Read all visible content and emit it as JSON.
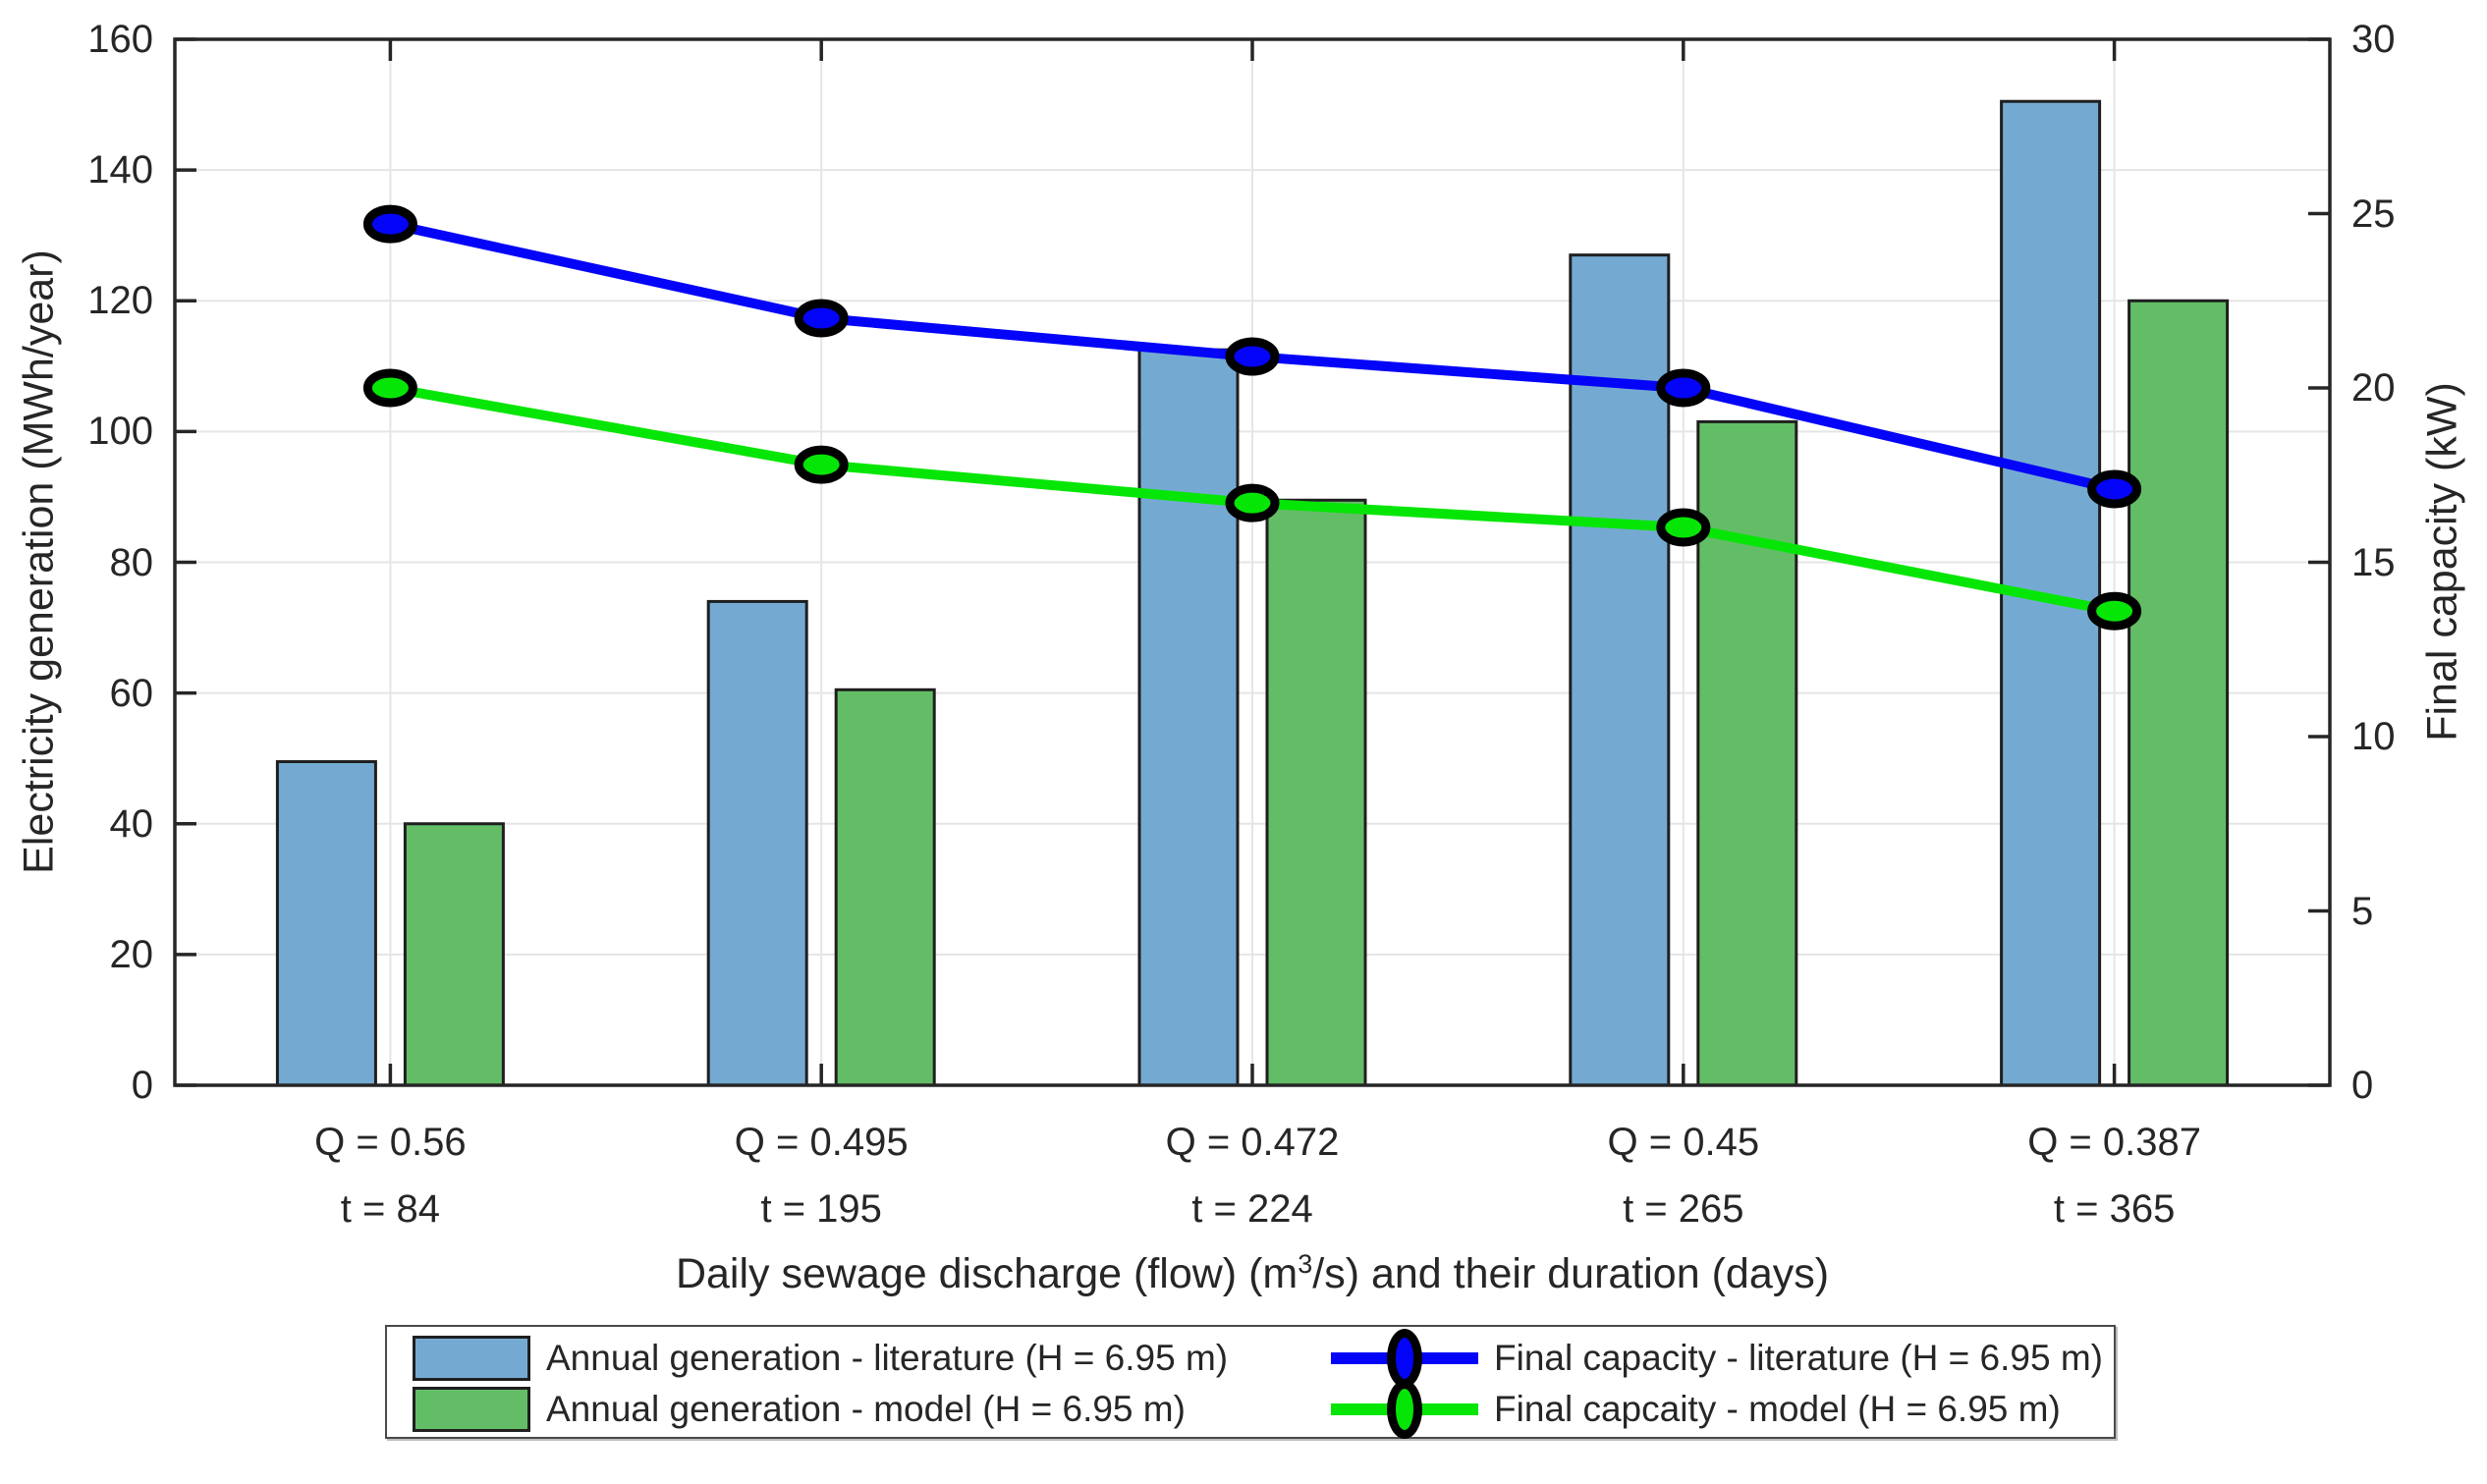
{
  "chart_data": {
    "type": "bar",
    "subtype": "grouped-bars-with-two-lines-dual-axis",
    "categories": [
      {
        "flow": "Q = 0.56",
        "duration": "t = 84"
      },
      {
        "flow": "Q = 0.495",
        "duration": "t = 195"
      },
      {
        "flow": "Q = 0.472",
        "duration": "t = 224"
      },
      {
        "flow": "Q = 0.45",
        "duration": "t = 265"
      },
      {
        "flow": "Q = 0.387",
        "duration": "t = 365"
      }
    ],
    "bar_series": [
      {
        "name": "Annual generation - literature (H = 6.95 m)",
        "axis": "left",
        "color": "#74aad2",
        "values": [
          49.5,
          74,
          112.5,
          127,
          150.5
        ]
      },
      {
        "name": "Annual generation - model (H = 6.95 m)",
        "axis": "left",
        "color": "#63bd66",
        "values": [
          40,
          60.5,
          89.5,
          101.5,
          120
        ]
      }
    ],
    "line_series": [
      {
        "name": "Final capacity - literature (H = 6.95 m)",
        "axis": "right",
        "color": "#0404f8",
        "values": [
          24.7,
          22,
          20.9,
          20,
          17.1
        ]
      },
      {
        "name": "Final capcaity - model (H = 6.95 m)",
        "axis": "right",
        "color": "#06e606",
        "values": [
          20,
          17.8,
          16.7,
          16,
          13.6
        ]
      }
    ],
    "left_axis": {
      "label": "Electricity generation (MWh/year)",
      "min": 0,
      "max": 160,
      "ticks": [
        0,
        20,
        40,
        60,
        80,
        100,
        120,
        140,
        160
      ]
    },
    "right_axis": {
      "label": "Final capacity (kW)",
      "min": 0,
      "max": 30,
      "ticks": [
        0,
        5,
        10,
        15,
        20,
        25,
        30
      ]
    },
    "xlabel": {
      "pre": "Daily sewage discharge (flow) (m",
      "sup": "3",
      "post": "/s) and their duration (days)"
    },
    "grid": true,
    "legend_position": "below-plot",
    "colors": {
      "edge": "#1f1f1f",
      "marker_edge": "#000000",
      "grid": "#e5e5e5",
      "frame": "#262626",
      "background": "#ffffff"
    }
  }
}
